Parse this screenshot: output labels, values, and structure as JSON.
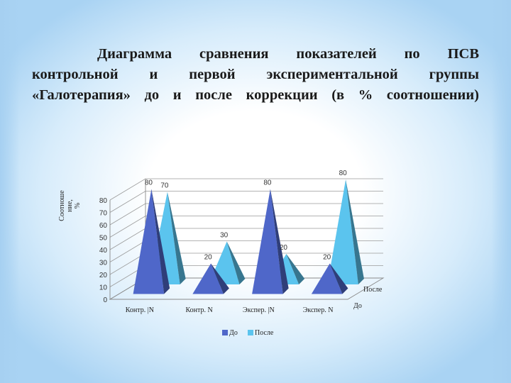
{
  "slide": {
    "title_lines": [
      "Диаграмма сравнения показателей по ПСВ",
      "контрольной и первой экспериментальной группы",
      "«Галотерапия» до и после коррекции (в % соотношении)"
    ]
  },
  "chart_data": {
    "type": "bar",
    "style": "3d-pyramid",
    "title": "Диаграмма сравнения показателей по ПСВ контрольной и первой экспериментальной группы «Галотерапия» до и после коррекции (в % соотношении)",
    "categories": [
      "Контр. |N",
      "Контр. N",
      "Экспер. |N",
      "Экспер. N"
    ],
    "series": [
      {
        "name": "До",
        "values": [
          80,
          20,
          80,
          20
        ],
        "color": "#4f67c9"
      },
      {
        "name": "После",
        "values": [
          70,
          30,
          20,
          80
        ],
        "color": "#5bc4ee"
      }
    ],
    "ylabel": "Соотноше ние, %",
    "yticks": [
      0,
      10,
      20,
      30,
      40,
      50,
      60,
      70,
      80
    ],
    "ylim": [
      0,
      80
    ],
    "depth_labels": [
      "До",
      "После"
    ],
    "grid": true,
    "legend": "bottom"
  }
}
